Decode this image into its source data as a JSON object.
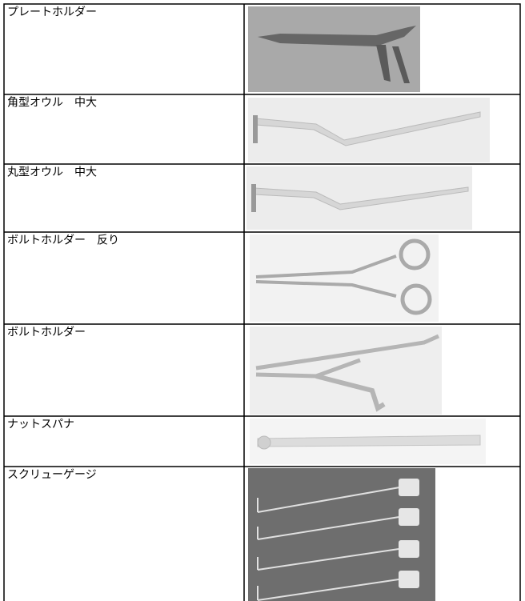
{
  "table": {
    "rows": [
      {
        "label": "プレートホルダー"
      },
      {
        "label": "角型オウル　中大"
      },
      {
        "label": "丸型オウル　中大"
      },
      {
        "label": "ボルトホルダー　反り"
      },
      {
        "label": "ボルトホルダー"
      },
      {
        "label": "ナットスパナ"
      },
      {
        "label": "スクリューゲージ"
      }
    ]
  }
}
